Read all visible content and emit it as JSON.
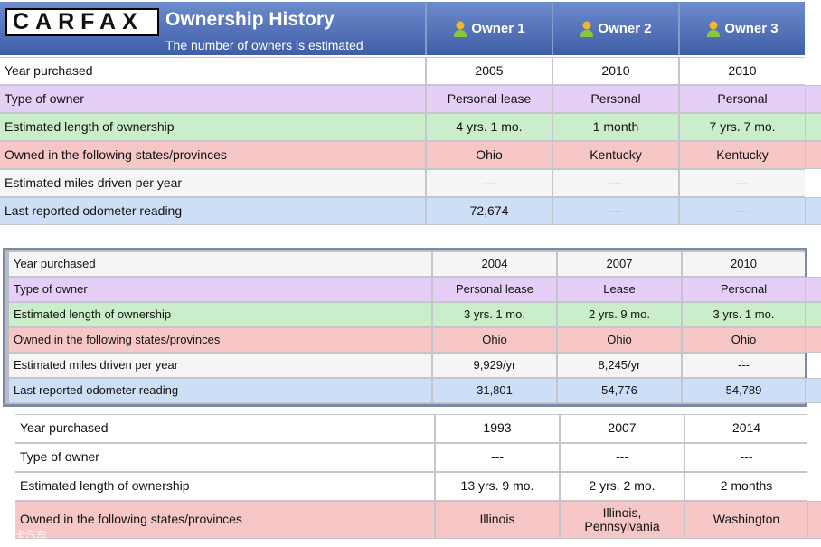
{
  "header": {
    "logo": "CARFAX",
    "title": "Ownership History",
    "subtitle": "The number of owners is estimated",
    "owners": [
      "Owner 1",
      "Owner 2",
      "Owner 3"
    ]
  },
  "tables": [
    {
      "rows": [
        {
          "label": "Year purchased",
          "values": [
            "2005",
            "2010",
            "2010"
          ]
        },
        {
          "label": "Type of owner",
          "values": [
            "Personal lease",
            "Personal",
            "Personal"
          ]
        },
        {
          "label": "Estimated length of ownership",
          "values": [
            "4 yrs. 1 mo.",
            "1 month",
            "7 yrs. 7 mo."
          ]
        },
        {
          "label": "Owned in the following states/provinces",
          "values": [
            "Ohio",
            "Kentucky",
            "Kentucky"
          ]
        },
        {
          "label": "Estimated miles driven per year",
          "values": [
            "---",
            "---",
            "---"
          ]
        },
        {
          "label": "Last reported odometer reading",
          "values": [
            "72,674",
            "---",
            "---"
          ]
        }
      ]
    },
    {
      "rows": [
        {
          "label": "Year purchased",
          "values": [
            "2004",
            "2007",
            "2010"
          ]
        },
        {
          "label": "Type of owner",
          "values": [
            "Personal lease",
            "Lease",
            "Personal"
          ]
        },
        {
          "label": "Estimated length of ownership",
          "values": [
            "3 yrs. 1 mo.",
            "2 yrs. 9 mo.",
            "3 yrs. 1 mo."
          ]
        },
        {
          "label": "Owned in the following states/provinces",
          "values": [
            "Ohio",
            "Ohio",
            "Ohio"
          ]
        },
        {
          "label": "Estimated miles driven per year",
          "values": [
            "9,929/yr",
            "8,245/yr",
            "---"
          ]
        },
        {
          "label": "Last reported odometer reading",
          "values": [
            "31,801",
            "54,776",
            "54,789"
          ]
        }
      ]
    },
    {
      "rows": [
        {
          "label": "Year purchased",
          "values": [
            "1993",
            "2007",
            "2014"
          ]
        },
        {
          "label": "Type of owner",
          "values": [
            "---",
            "---",
            "---"
          ]
        },
        {
          "label": "Estimated length of ownership",
          "values": [
            "13 yrs. 9 mo.",
            "2 yrs. 2 mo.",
            "2 months"
          ]
        },
        {
          "label": "Owned in the following states/provinces",
          "values": [
            "Illinois",
            "Illinois,\nPennsylvania",
            "Washington"
          ]
        }
      ]
    }
  ],
  "watermark": "爱卡汽车"
}
